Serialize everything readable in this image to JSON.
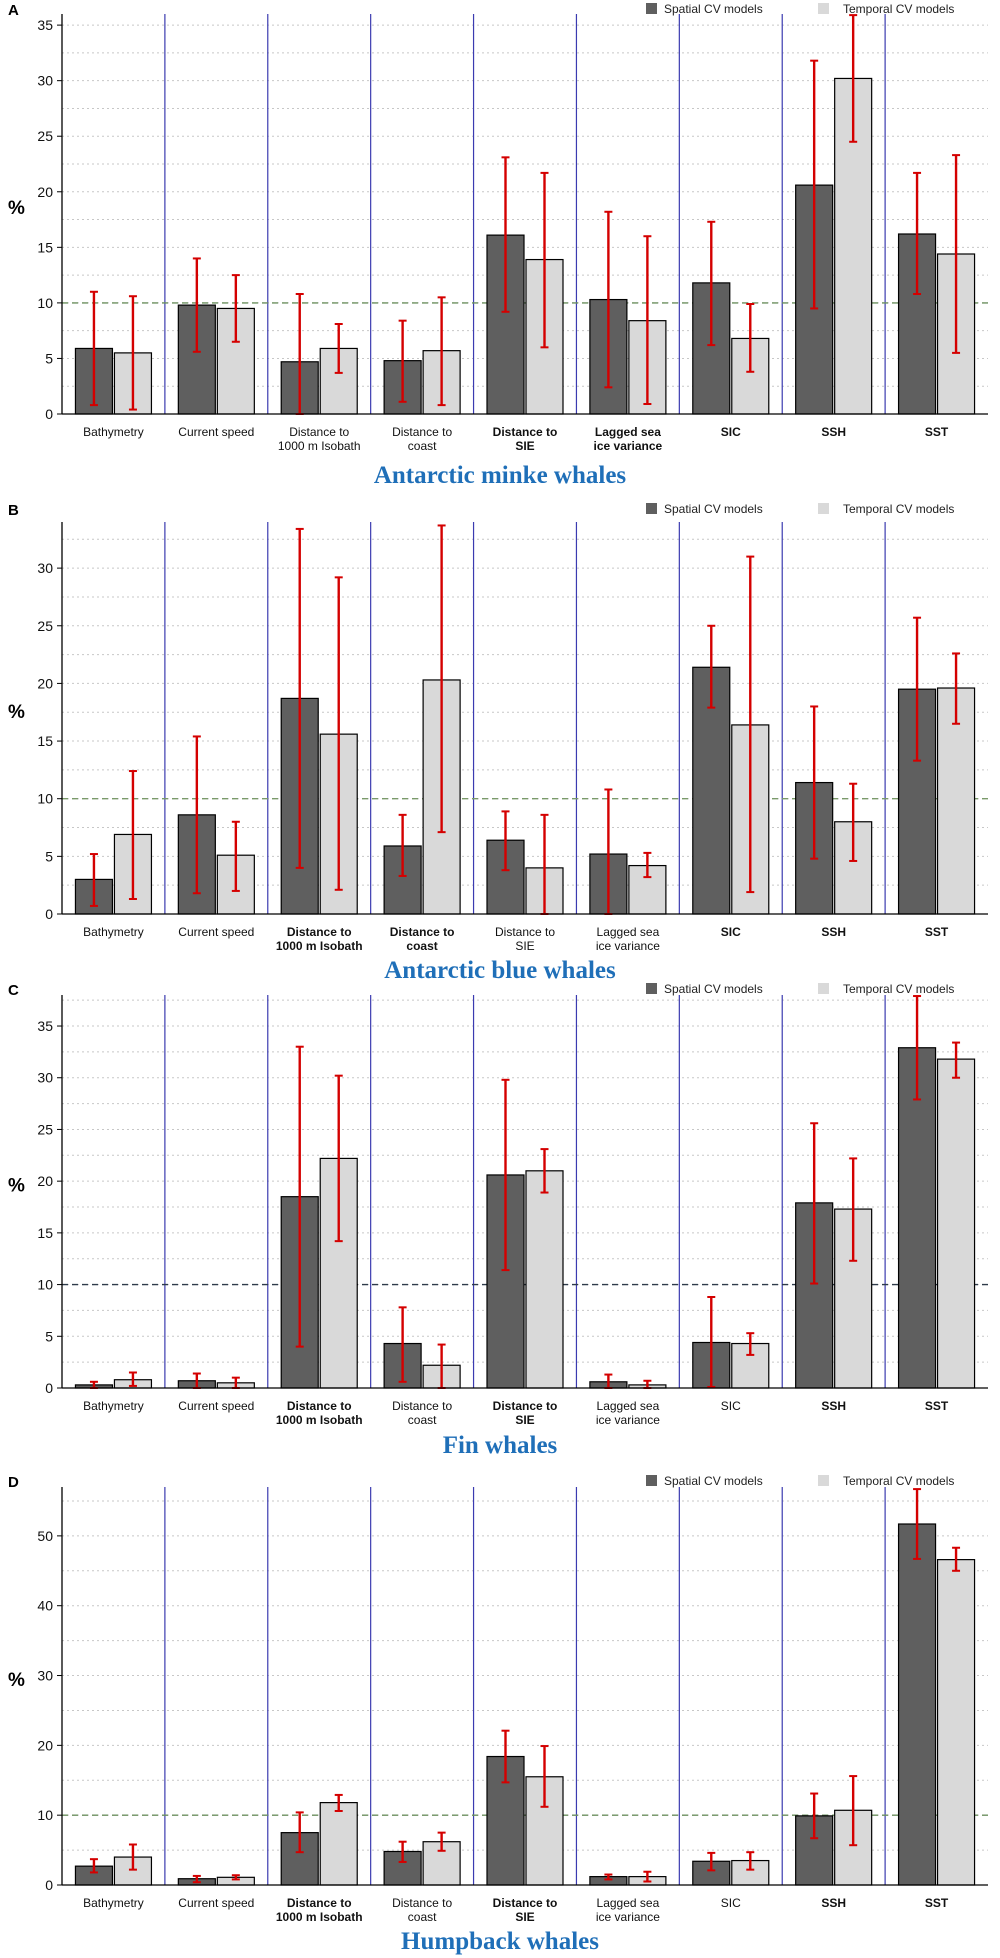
{
  "figure": {
    "legend": {
      "spatial_label": "Spatial CV models",
      "temporal_label": "Temporal CV models"
    },
    "colors": {
      "spatial": "#5f5f5f",
      "temporal": "#d9d9d9",
      "error_bar": "#d40000",
      "divider": "#3b3bb0",
      "title": "#1f6fb8",
      "grid": "#c7c7c7"
    }
  },
  "chart_data": [
    {
      "type": "bar",
      "panel_letter": "A",
      "title": "Antarctic minke whales",
      "ylabel": "%",
      "ylim": [
        0,
        36
      ],
      "yticks": [
        0,
        5,
        10,
        15,
        20,
        25,
        30,
        35
      ],
      "reference_line": 10,
      "reference_color": "#6b8f5e",
      "categories": [
        {
          "lines": [
            "Bathymetry"
          ],
          "bold": false
        },
        {
          "lines": [
            "Current speed"
          ],
          "bold": false
        },
        {
          "lines": [
            "Distance to",
            "1000 m Isobath"
          ],
          "bold": false
        },
        {
          "lines": [
            "Distance to",
            "coast"
          ],
          "bold": false
        },
        {
          "lines": [
            "Distance to",
            "SIE"
          ],
          "bold": true
        },
        {
          "lines": [
            "Lagged sea",
            "ice variance"
          ],
          "bold": true
        },
        {
          "lines": [
            "SIC"
          ],
          "bold": true
        },
        {
          "lines": [
            "SSH"
          ],
          "bold": true
        },
        {
          "lines": [
            "SST"
          ],
          "bold": true
        }
      ],
      "series": [
        {
          "name": "Spatial CV models",
          "values": [
            5.9,
            9.8,
            4.7,
            4.8,
            16.1,
            10.3,
            11.8,
            20.6,
            16.2
          ],
          "err_low": [
            0.8,
            5.6,
            0.0,
            1.1,
            9.2,
            2.4,
            6.2,
            9.5,
            10.8
          ],
          "err_high": [
            11.0,
            14.0,
            10.8,
            8.4,
            23.1,
            18.2,
            17.3,
            31.8,
            21.7
          ]
        },
        {
          "name": "Temporal CV models",
          "values": [
            5.5,
            9.5,
            5.9,
            5.7,
            13.9,
            8.4,
            6.8,
            30.2,
            14.4
          ],
          "err_low": [
            0.4,
            6.5,
            3.7,
            0.8,
            6.0,
            0.9,
            3.8,
            24.5,
            5.5
          ],
          "err_high": [
            10.6,
            12.5,
            8.1,
            10.5,
            21.7,
            16.0,
            9.9,
            35.9,
            23.3
          ]
        }
      ]
    },
    {
      "type": "bar",
      "panel_letter": "B",
      "title": "Antarctic blue whales",
      "ylabel": "%",
      "ylim": [
        0,
        34
      ],
      "yticks": [
        0,
        5,
        10,
        15,
        20,
        25,
        30
      ],
      "reference_line": 10,
      "reference_color": "#7a9a6a",
      "categories": [
        {
          "lines": [
            "Bathymetry"
          ],
          "bold": false
        },
        {
          "lines": [
            "Current speed"
          ],
          "bold": false
        },
        {
          "lines": [
            "Distance to",
            "1000 m Isobath"
          ],
          "bold": true
        },
        {
          "lines": [
            "Distance to",
            "coast"
          ],
          "bold": true
        },
        {
          "lines": [
            "Distance to",
            "SIE"
          ],
          "bold": false
        },
        {
          "lines": [
            "Lagged sea",
            "ice variance"
          ],
          "bold": false
        },
        {
          "lines": [
            "SIC"
          ],
          "bold": true
        },
        {
          "lines": [
            "SSH"
          ],
          "bold": true
        },
        {
          "lines": [
            "SST"
          ],
          "bold": true
        }
      ],
      "series": [
        {
          "name": "Spatial CV models",
          "values": [
            3.0,
            8.6,
            18.7,
            5.9,
            6.4,
            5.2,
            21.4,
            11.4,
            19.5
          ],
          "err_low": [
            0.7,
            1.8,
            4.0,
            3.3,
            3.8,
            0.0,
            17.9,
            4.8,
            13.3
          ],
          "err_high": [
            5.2,
            15.4,
            33.4,
            8.6,
            8.9,
            10.8,
            25.0,
            18.0,
            25.7
          ]
        },
        {
          "name": "Temporal CV models",
          "values": [
            6.9,
            5.1,
            15.6,
            20.3,
            4.0,
            4.2,
            16.4,
            8.0,
            19.6
          ],
          "err_low": [
            1.3,
            2.0,
            2.1,
            7.1,
            0.0,
            3.2,
            1.9,
            4.6,
            16.5
          ],
          "err_high": [
            12.4,
            8.0,
            29.2,
            33.7,
            8.6,
            5.3,
            31.0,
            11.3,
            22.6
          ]
        }
      ]
    },
    {
      "type": "bar",
      "panel_letter": "C",
      "title": "Fin whales",
      "ylabel": "%",
      "ylim": [
        0,
        38
      ],
      "yticks": [
        0,
        5,
        10,
        15,
        20,
        25,
        30,
        35
      ],
      "reference_line": 10,
      "reference_color": "#2f3b4a",
      "categories": [
        {
          "lines": [
            "Bathymetry"
          ],
          "bold": false
        },
        {
          "lines": [
            "Current speed"
          ],
          "bold": false
        },
        {
          "lines": [
            "Distance to",
            "1000 m Isobath"
          ],
          "bold": true
        },
        {
          "lines": [
            "Distance to",
            "coast"
          ],
          "bold": false
        },
        {
          "lines": [
            "Distance to",
            "SIE"
          ],
          "bold": true
        },
        {
          "lines": [
            "Lagged sea",
            "ice variance"
          ],
          "bold": false
        },
        {
          "lines": [
            "SIC"
          ],
          "bold": false
        },
        {
          "lines": [
            "SSH"
          ],
          "bold": true
        },
        {
          "lines": [
            "SST"
          ],
          "bold": true
        }
      ],
      "series": [
        {
          "name": "Spatial CV models",
          "values": [
            0.3,
            0.7,
            18.5,
            4.3,
            20.6,
            0.6,
            4.4,
            17.9,
            32.9
          ],
          "err_low": [
            0.0,
            0.0,
            4.0,
            0.6,
            11.4,
            0.0,
            0.1,
            10.1,
            27.9
          ],
          "err_high": [
            0.6,
            1.4,
            33.0,
            7.8,
            29.8,
            1.3,
            8.8,
            25.6,
            37.9
          ]
        },
        {
          "name": "Temporal CV models",
          "values": [
            0.8,
            0.5,
            22.2,
            2.2,
            21.0,
            0.3,
            4.3,
            17.3,
            31.8
          ],
          "err_low": [
            0.2,
            0.0,
            14.2,
            0.0,
            18.9,
            0.0,
            3.2,
            12.3,
            30.0
          ],
          "err_high": [
            1.5,
            1.0,
            30.2,
            4.2,
            23.1,
            0.7,
            5.3,
            22.2,
            33.4
          ]
        }
      ]
    },
    {
      "type": "bar",
      "panel_letter": "D",
      "title": "Humpback whales",
      "ylabel": "%",
      "ylim": [
        0,
        57
      ],
      "yticks": [
        0,
        10,
        20,
        30,
        40,
        50
      ],
      "reference_line": 10,
      "reference_color": "#6b8f5e",
      "categories": [
        {
          "lines": [
            "Bathymetry"
          ],
          "bold": false
        },
        {
          "lines": [
            "Current speed"
          ],
          "bold": false
        },
        {
          "lines": [
            "Distance to",
            "1000 m Isobath"
          ],
          "bold": true
        },
        {
          "lines": [
            "Distance to",
            "coast"
          ],
          "bold": false
        },
        {
          "lines": [
            "Distance to",
            "SIE"
          ],
          "bold": true
        },
        {
          "lines": [
            "Lagged sea",
            "ice variance"
          ],
          "bold": false
        },
        {
          "lines": [
            "SIC"
          ],
          "bold": false
        },
        {
          "lines": [
            "SSH"
          ],
          "bold": true
        },
        {
          "lines": [
            "SST"
          ],
          "bold": true
        }
      ],
      "series": [
        {
          "name": "Spatial CV models",
          "values": [
            2.7,
            0.9,
            7.5,
            4.8,
            18.4,
            1.2,
            3.4,
            9.9,
            51.7
          ],
          "err_low": [
            1.8,
            0.4,
            4.7,
            3.3,
            14.7,
            0.8,
            2.1,
            6.7,
            46.7
          ],
          "err_high": [
            3.7,
            1.3,
            10.4,
            6.2,
            22.1,
            1.5,
            4.6,
            13.1,
            56.7
          ]
        },
        {
          "name": "Temporal CV models",
          "values": [
            4.0,
            1.1,
            11.8,
            6.2,
            15.5,
            1.2,
            3.5,
            10.7,
            46.6
          ],
          "err_low": [
            2.2,
            0.8,
            10.6,
            4.9,
            11.2,
            0.5,
            2.2,
            5.7,
            45.0
          ],
          "err_high": [
            5.8,
            1.4,
            12.9,
            7.5,
            19.9,
            1.9,
            4.7,
            15.6,
            48.3
          ]
        }
      ]
    }
  ]
}
